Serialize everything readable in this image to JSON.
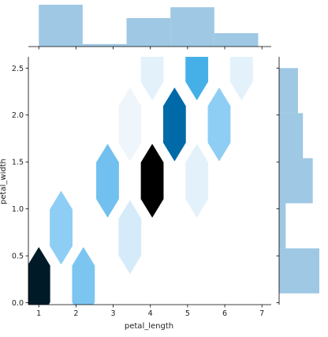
{
  "chart_data": {
    "type": "heatmap",
    "subtype": "hexbin-jointplot",
    "xlabel": "petal_length",
    "ylabel": "petal_width",
    "xlim": [
      0.72,
      7.25
    ],
    "ylim": [
      -0.02,
      2.62
    ],
    "xticks": [
      "1",
      "2",
      "3",
      "4",
      "5",
      "6",
      "7"
    ],
    "xtick_values": [
      1,
      2,
      3,
      4,
      5,
      6,
      7
    ],
    "yticks": [
      "0.0",
      "0.5",
      "1.0",
      "1.5",
      "2.0",
      "2.5"
    ],
    "ytick_values": [
      0.0,
      0.5,
      1.0,
      1.5,
      2.0,
      2.5
    ],
    "colormap": {
      "low": "#e7f3fb",
      "mid": "#45b0e8",
      "high": "#000000"
    },
    "hexbins": [
      {
        "x": 1.0,
        "y": 0.2,
        "color": "#001a28"
      },
      {
        "x": 1.6,
        "y": 0.8,
        "color": "#8ecef4"
      },
      {
        "x": 2.2,
        "y": 0.2,
        "color": "#7cc5f1"
      },
      {
        "x": 2.85,
        "y": 1.3,
        "color": "#72c0ef"
      },
      {
        "x": 3.45,
        "y": 1.9,
        "color": "#eef6fc"
      },
      {
        "x": 3.45,
        "y": 0.7,
        "color": "#d6ebf9"
      },
      {
        "x": 4.05,
        "y": 2.55,
        "color": "#e3f1fb"
      },
      {
        "x": 4.05,
        "y": 1.3,
        "color": "#000000"
      },
      {
        "x": 4.65,
        "y": 1.9,
        "color": "#006aa8"
      },
      {
        "x": 5.25,
        "y": 2.55,
        "color": "#45b0e8"
      },
      {
        "x": 5.25,
        "y": 1.3,
        "color": "#e3f1fb"
      },
      {
        "x": 5.85,
        "y": 1.9,
        "color": "#8ecef4"
      },
      {
        "x": 6.45,
        "y": 2.55,
        "color": "#e3f1fb"
      }
    ],
    "marginal_x": {
      "bins": [
        [
          1.0,
          2.18
        ],
        [
          2.18,
          3.36
        ],
        [
          3.36,
          4.54
        ],
        [
          4.54,
          5.72
        ],
        [
          5.72,
          6.9
        ]
      ],
      "counts": [
        50,
        3,
        34,
        47,
        16
      ]
    },
    "marginal_y": {
      "bins": [
        [
          0.1,
          0.58
        ],
        [
          0.58,
          1.06
        ],
        [
          1.06,
          1.54
        ],
        [
          1.54,
          2.02
        ],
        [
          2.02,
          2.5
        ]
      ],
      "counts": [
        49,
        8,
        41,
        29,
        23
      ]
    },
    "bar_color": "#9ec8e4"
  }
}
